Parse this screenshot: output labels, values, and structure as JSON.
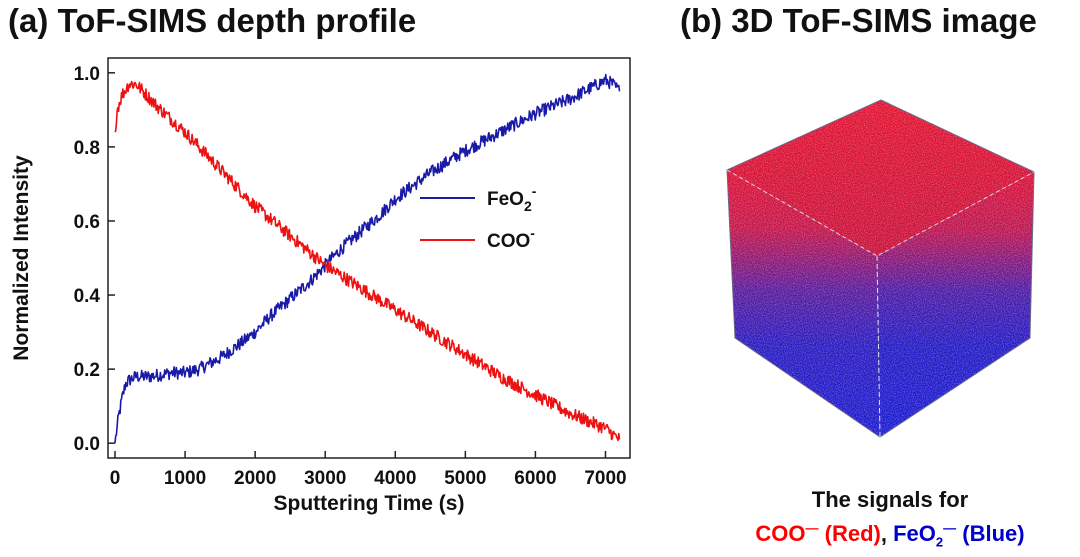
{
  "titles": {
    "a": "(a) ToF-SIMS depth profile",
    "b": "(b) 3D ToF-SIMS image"
  },
  "chart_data": {
    "type": "line",
    "title": "(a) ToF-SIMS depth profile",
    "xlabel": "Sputtering Time (s)",
    "ylabel": "Normalized Intensity",
    "xlim": [
      -100,
      7350
    ],
    "ylim": [
      -0.04,
      1.04
    ],
    "xticks": [
      0,
      1000,
      2000,
      3000,
      4000,
      5000,
      6000,
      7000
    ],
    "xtick_labels": [
      "0",
      "1000",
      "2000",
      "3000",
      "4000",
      "5000",
      "6000",
      "7000"
    ],
    "yticks": [
      0.0,
      0.2,
      0.4,
      0.6,
      0.8,
      1.0
    ],
    "ytick_labels": [
      "0.0",
      "0.2",
      "0.4",
      "0.6",
      "0.8",
      "1.0"
    ],
    "grid": false,
    "legend_position": "right",
    "series": [
      {
        "name": "FeO2-",
        "legend_base": "FeO",
        "legend_sub": "2",
        "legend_sup": "-",
        "color": "#1a1aa8",
        "x": [
          0,
          50,
          100,
          150,
          200,
          300,
          500,
          800,
          1000,
          1200,
          1500,
          1800,
          2000,
          2200,
          2500,
          2800,
          3000,
          3200,
          3500,
          3800,
          4000,
          4500,
          5000,
          5500,
          6000,
          6500,
          6800,
          7000,
          7100,
          7200
        ],
        "values": [
          0.0,
          0.07,
          0.12,
          0.16,
          0.17,
          0.18,
          0.18,
          0.19,
          0.19,
          0.2,
          0.23,
          0.27,
          0.3,
          0.34,
          0.39,
          0.44,
          0.48,
          0.52,
          0.57,
          0.62,
          0.66,
          0.73,
          0.79,
          0.84,
          0.89,
          0.93,
          0.96,
          0.98,
          0.97,
          0.95
        ]
      },
      {
        "name": "COO-",
        "legend_base": "COO",
        "legend_sub": "",
        "legend_sup": "-",
        "color": "#ee1111",
        "x": [
          0,
          30,
          100,
          200,
          300,
          400,
          600,
          1000,
          1500,
          2000,
          2500,
          3000,
          3500,
          4000,
          4500,
          5000,
          5500,
          6000,
          6500,
          7000,
          7200
        ],
        "values": [
          0.84,
          0.9,
          0.94,
          0.97,
          0.97,
          0.95,
          0.91,
          0.84,
          0.74,
          0.64,
          0.56,
          0.48,
          0.42,
          0.36,
          0.3,
          0.24,
          0.18,
          0.13,
          0.08,
          0.04,
          0.01
        ]
      }
    ]
  },
  "cube": {
    "description_for": "3D ToF-SIMS image",
    "top_color": "#e01030",
    "bottom_color": "#1a1acc"
  },
  "caption": {
    "line1": "The signals for",
    "coo_base": "COO",
    "coo_sup": "—",
    "coo_tag": " (Red)",
    "comma": ", ",
    "feo_base": "FeO",
    "feo_sub": "2",
    "feo_sup": "—",
    "feo_tag": " (Blue)"
  }
}
